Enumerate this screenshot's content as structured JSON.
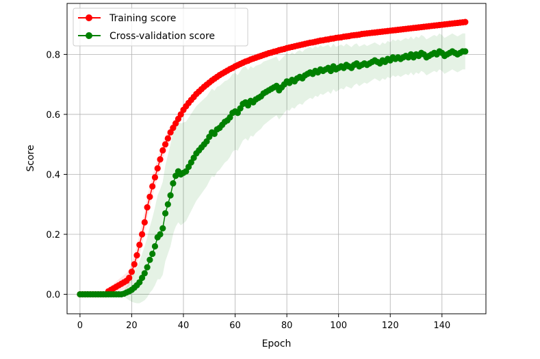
{
  "chart_data": {
    "type": "line",
    "xlabel": "Epoch",
    "ylabel": "Score",
    "xlim": [
      -5,
      157
    ],
    "ylim": [
      -0.065,
      0.97
    ],
    "xticks": [
      0,
      20,
      40,
      60,
      80,
      100,
      120,
      140
    ],
    "xtick_labels": [
      "0",
      "20",
      "40",
      "60",
      "80",
      "100",
      "120",
      "140"
    ],
    "yticks": [
      0.0,
      0.2,
      0.4,
      0.6,
      0.8
    ],
    "ytick_labels": [
      "0.0",
      "0.2",
      "0.4",
      "0.6",
      "0.8"
    ],
    "grid": true,
    "legend_position": "upper-left",
    "series": [
      {
        "name": "Training score",
        "color": "#ff0000",
        "band_color": "#ff0000",
        "marker": "circle",
        "x_start": 0,
        "x_step": 1,
        "values": [
          0.0,
          0.0,
          0.0,
          0.0,
          0.0,
          0.0,
          0.0,
          0.0,
          0.0,
          0.0,
          0.0,
          0.01,
          0.015,
          0.02,
          0.025,
          0.03,
          0.035,
          0.04,
          0.045,
          0.055,
          0.075,
          0.1,
          0.13,
          0.165,
          0.2,
          0.24,
          0.29,
          0.325,
          0.36,
          0.39,
          0.42,
          0.45,
          0.48,
          0.5,
          0.52,
          0.54,
          0.555,
          0.57,
          0.585,
          0.6,
          0.615,
          0.627,
          0.638,
          0.648,
          0.658,
          0.668,
          0.676,
          0.684,
          0.692,
          0.699,
          0.706,
          0.713,
          0.719,
          0.725,
          0.731,
          0.736,
          0.741,
          0.746,
          0.751,
          0.755,
          0.76,
          0.764,
          0.768,
          0.772,
          0.776,
          0.779,
          0.783,
          0.786,
          0.789,
          0.792,
          0.795,
          0.798,
          0.801,
          0.804,
          0.806,
          0.809,
          0.811,
          0.814,
          0.816,
          0.818,
          0.821,
          0.823,
          0.825,
          0.827,
          0.829,
          0.831,
          0.833,
          0.835,
          0.837,
          0.839,
          0.84,
          0.842,
          0.844,
          0.846,
          0.847,
          0.849,
          0.85,
          0.852,
          0.853,
          0.855,
          0.856,
          0.857,
          0.859,
          0.86,
          0.861,
          0.863,
          0.864,
          0.865,
          0.866,
          0.868,
          0.869,
          0.87,
          0.871,
          0.872,
          0.873,
          0.874,
          0.875,
          0.876,
          0.877,
          0.878,
          0.879,
          0.88,
          0.881,
          0.882,
          0.883,
          0.884,
          0.885,
          0.886,
          0.887,
          0.888,
          0.889,
          0.89,
          0.891,
          0.892,
          0.893,
          0.894,
          0.895,
          0.896,
          0.897,
          0.898,
          0.899,
          0.9,
          0.901,
          0.902,
          0.903,
          0.904,
          0.905,
          0.906,
          0.907,
          0.908
        ],
        "band_halfwidth": [
          0.0,
          0.0,
          0.0,
          0.0,
          0.0,
          0.0,
          0.0,
          0.0,
          0.0,
          0.0,
          0.0,
          0.01,
          0.012,
          0.015,
          0.018,
          0.02,
          0.022,
          0.024,
          0.026,
          0.028,
          0.03,
          0.032,
          0.033,
          0.034,
          0.035,
          0.036,
          0.036,
          0.035,
          0.034,
          0.033,
          0.032,
          0.03,
          0.028,
          0.026,
          0.024,
          0.022,
          0.02,
          0.018,
          0.016,
          0.015,
          0.014,
          0.013,
          0.012,
          0.011,
          0.01,
          0.01,
          0.009,
          0.009,
          0.008,
          0.008,
          0.007,
          0.007,
          0.007,
          0.006,
          0.006,
          0.006,
          0.006,
          0.005,
          0.005,
          0.005,
          0.005,
          0.005,
          0.005,
          0.005,
          0.004,
          0.004,
          0.004,
          0.004,
          0.004,
          0.004,
          0.004,
          0.004,
          0.004,
          0.004,
          0.004,
          0.004,
          0.003,
          0.003,
          0.003,
          0.003,
          0.003,
          0.003,
          0.003,
          0.003,
          0.003,
          0.003,
          0.003,
          0.003,
          0.003,
          0.003,
          0.003,
          0.003,
          0.003,
          0.003,
          0.003,
          0.003,
          0.003,
          0.003,
          0.003,
          0.003,
          0.003,
          0.003,
          0.003,
          0.003,
          0.003,
          0.003,
          0.003,
          0.003,
          0.003,
          0.003,
          0.003,
          0.003,
          0.003,
          0.003,
          0.003,
          0.003,
          0.003,
          0.003,
          0.003,
          0.003,
          0.003,
          0.003,
          0.003,
          0.003,
          0.003,
          0.003,
          0.003,
          0.003,
          0.003,
          0.003,
          0.003,
          0.003,
          0.003,
          0.003,
          0.003,
          0.003,
          0.003,
          0.003,
          0.003,
          0.003,
          0.003,
          0.003,
          0.003,
          0.003,
          0.003,
          0.003,
          0.003,
          0.003,
          0.003,
          0.003
        ]
      },
      {
        "name": "Cross-validation score",
        "color": "#008000",
        "band_color": "#008000",
        "marker": "circle",
        "x_start": 0,
        "x_step": 1,
        "values": [
          0.0,
          0.0,
          0.0,
          0.0,
          0.0,
          0.0,
          0.0,
          0.0,
          0.0,
          0.0,
          0.0,
          0.0,
          0.0,
          0.0,
          0.0,
          0.0,
          0.0,
          0.002,
          0.006,
          0.01,
          0.015,
          0.022,
          0.03,
          0.04,
          0.055,
          0.07,
          0.09,
          0.115,
          0.135,
          0.16,
          0.19,
          0.2,
          0.22,
          0.27,
          0.3,
          0.33,
          0.37,
          0.395,
          0.41,
          0.4,
          0.405,
          0.41,
          0.425,
          0.44,
          0.455,
          0.47,
          0.48,
          0.49,
          0.5,
          0.51,
          0.525,
          0.54,
          0.535,
          0.55,
          0.555,
          0.565,
          0.575,
          0.58,
          0.59,
          0.605,
          0.61,
          0.605,
          0.62,
          0.635,
          0.64,
          0.63,
          0.645,
          0.64,
          0.65,
          0.655,
          0.66,
          0.67,
          0.675,
          0.68,
          0.685,
          0.69,
          0.695,
          0.68,
          0.69,
          0.7,
          0.71,
          0.705,
          0.715,
          0.71,
          0.72,
          0.725,
          0.72,
          0.73,
          0.735,
          0.74,
          0.735,
          0.745,
          0.74,
          0.75,
          0.745,
          0.75,
          0.755,
          0.745,
          0.76,
          0.75,
          0.755,
          0.76,
          0.755,
          0.765,
          0.76,
          0.755,
          0.765,
          0.77,
          0.76,
          0.765,
          0.77,
          0.765,
          0.77,
          0.775,
          0.78,
          0.775,
          0.77,
          0.78,
          0.775,
          0.785,
          0.78,
          0.79,
          0.785,
          0.79,
          0.785,
          0.79,
          0.795,
          0.79,
          0.8,
          0.79,
          0.8,
          0.795,
          0.805,
          0.8,
          0.79,
          0.795,
          0.8,
          0.805,
          0.8,
          0.81,
          0.805,
          0.795,
          0.8,
          0.805,
          0.81,
          0.805,
          0.8,
          0.805,
          0.81,
          0.81
        ],
        "band_halfwidth": [
          0.0,
          0.0,
          0.0,
          0.0,
          0.0,
          0.0,
          0.0,
          0.0,
          0.0,
          0.0,
          0.0,
          0.0,
          0.0,
          0.0,
          0.0,
          0.0,
          0.0,
          0.01,
          0.02,
          0.03,
          0.04,
          0.05,
          0.06,
          0.07,
          0.08,
          0.09,
          0.1,
          0.11,
          0.12,
          0.13,
          0.14,
          0.15,
          0.155,
          0.16,
          0.165,
          0.17,
          0.17,
          0.17,
          0.17,
          0.17,
          0.168,
          0.166,
          0.164,
          0.162,
          0.16,
          0.158,
          0.156,
          0.154,
          0.152,
          0.15,
          0.148,
          0.146,
          0.144,
          0.142,
          0.14,
          0.138,
          0.136,
          0.134,
          0.132,
          0.13,
          0.128,
          0.126,
          0.124,
          0.122,
          0.12,
          0.118,
          0.116,
          0.114,
          0.112,
          0.11,
          0.108,
          0.106,
          0.104,
          0.102,
          0.1,
          0.099,
          0.098,
          0.097,
          0.096,
          0.095,
          0.094,
          0.093,
          0.092,
          0.091,
          0.09,
          0.089,
          0.088,
          0.087,
          0.086,
          0.085,
          0.084,
          0.083,
          0.082,
          0.081,
          0.08,
          0.079,
          0.078,
          0.077,
          0.076,
          0.075,
          0.074,
          0.073,
          0.072,
          0.071,
          0.07,
          0.069,
          0.068,
          0.067,
          0.066,
          0.065,
          0.064,
          0.063,
          0.062,
          0.061,
          0.06,
          0.06,
          0.06,
          0.06,
          0.06,
          0.06,
          0.06,
          0.06,
          0.06,
          0.06,
          0.06,
          0.06,
          0.06,
          0.06,
          0.06,
          0.06,
          0.06,
          0.06,
          0.06,
          0.06,
          0.06,
          0.06,
          0.06,
          0.06,
          0.06,
          0.06,
          0.06,
          0.06,
          0.06,
          0.06,
          0.06,
          0.06,
          0.06,
          0.06,
          0.06,
          0.06
        ]
      }
    ]
  }
}
